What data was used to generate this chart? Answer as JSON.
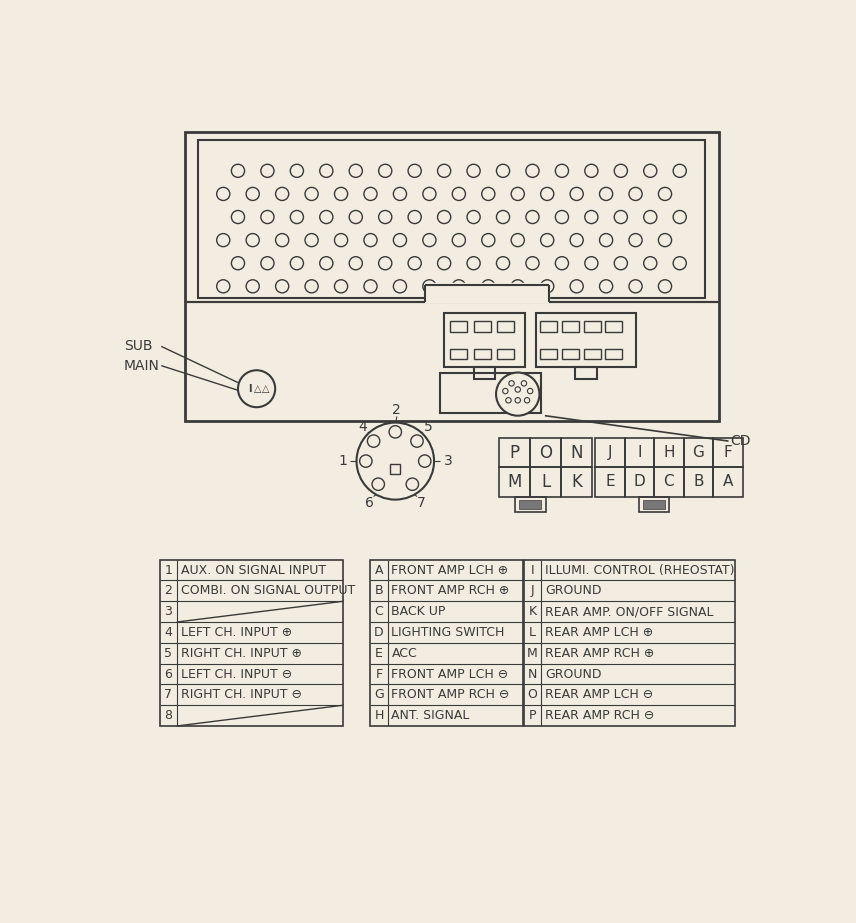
{
  "bg_color": "#f2ede0",
  "line_color": "#3a3a3a",
  "table1": {
    "rows": [
      [
        "1",
        "AUX. ON SIGNAL INPUT"
      ],
      [
        "2",
        "COMBI. ON SIGNAL OUTPUT"
      ],
      [
        "3",
        ""
      ],
      [
        "4",
        "LEFT CH. INPUT ⊕"
      ],
      [
        "5",
        "RIGHT CH. INPUT ⊕"
      ],
      [
        "6",
        "LEFT CH. INPUT ⊖"
      ],
      [
        "7",
        "RIGHT CH. INPUT ⊖"
      ],
      [
        "8",
        ""
      ]
    ]
  },
  "table2": {
    "rows": [
      [
        "A",
        "FRONT AMP LCH ⊕"
      ],
      [
        "B",
        "FRONT AMP RCH ⊕"
      ],
      [
        "C",
        "BACK UP"
      ],
      [
        "D",
        "LIGHTING SWITCH"
      ],
      [
        "E",
        "ACC"
      ],
      [
        "F",
        "FRONT AMP LCH ⊖"
      ],
      [
        "G",
        "FRONT AMP RCH ⊖"
      ],
      [
        "H",
        "ANT. SIGNAL"
      ]
    ]
  },
  "table3": {
    "rows": [
      [
        "I",
        "ILLUMI. CONTROL (RHEOSTAT)"
      ],
      [
        "J",
        "GROUND"
      ],
      [
        "K",
        "REAR AMP. ON/OFF SIGNAL"
      ],
      [
        "L",
        "REAR AMP LCH ⊕"
      ],
      [
        "M",
        "REAR AMP RCH ⊕"
      ],
      [
        "N",
        "GROUND"
      ],
      [
        "O",
        "REAR AMP LCH ⊖"
      ],
      [
        "P",
        "REAR AMP RCH ⊖"
      ]
    ]
  },
  "connector_small_labels": [
    [
      "P",
      "O",
      "N"
    ],
    [
      "M",
      "L",
      "K"
    ]
  ],
  "connector_large_labels": [
    [
      "J",
      "I",
      "H",
      "G",
      "F"
    ],
    [
      "E",
      "D",
      "C",
      "B",
      "A"
    ]
  ]
}
